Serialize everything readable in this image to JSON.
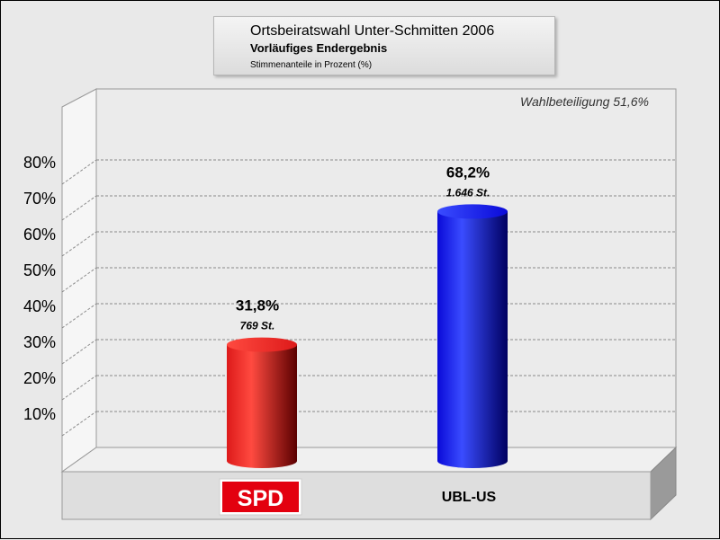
{
  "colors": {
    "SPD": {
      "light": "#ff4a40",
      "mid": "#dd1a1a",
      "dark": "#5a0000"
    },
    "UBL-US": {
      "light": "#3a4cff",
      "mid": "#0a0ad8",
      "dark": "#000060"
    },
    "spd_logo_bg": "#e3000f"
  },
  "chart_data": {
    "type": "bar",
    "title": "Ortsbeiratswahl Unter-Schmitten 2006",
    "subtitle": "Vorläufiges Endergebnis",
    "subtitle2": "Stimmenanteile in Prozent (%)",
    "annotation": "Wahlbeteiligung 51,6%",
    "categories": [
      "SPD",
      "UBL-US"
    ],
    "values": [
      31.8,
      68.2
    ],
    "value_labels": [
      "31,8%",
      "68,2%"
    ],
    "votes": [
      "769 St.",
      "1.646 St."
    ],
    "ylim": [
      0,
      80
    ],
    "yticks": [
      10,
      20,
      30,
      40,
      50,
      60,
      70,
      80
    ],
    "ytick_labels": [
      "10%",
      "20%",
      "30%",
      "40%",
      "50%",
      "60%",
      "70%",
      "80%"
    ],
    "grid": true
  }
}
